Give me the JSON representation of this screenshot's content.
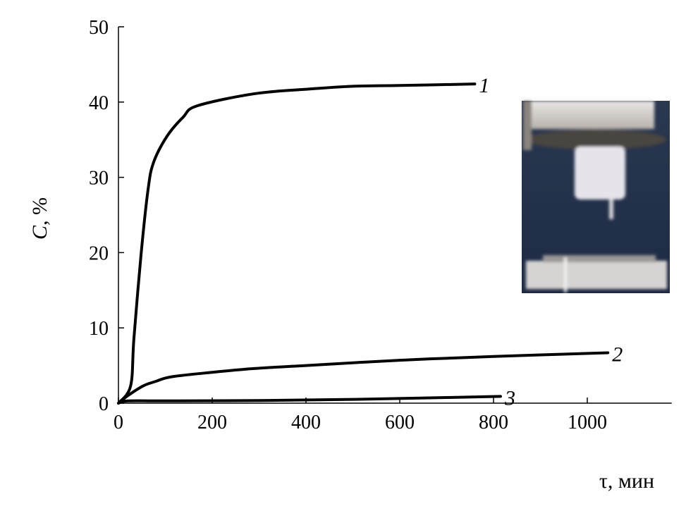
{
  "chart_data": {
    "type": "line",
    "xlabel": "τ, мин",
    "ylabel_var": "C",
    "ylabel_unit": ", %",
    "xlim": [
      0,
      1180
    ],
    "ylim": [
      0,
      50
    ],
    "xticks": [
      0,
      200,
      400,
      600,
      800,
      1000
    ],
    "yticks": [
      0,
      10,
      20,
      30,
      40,
      50
    ],
    "grid": false,
    "series": [
      {
        "name": "1",
        "x": [
          0,
          26,
          33,
          48,
          63,
          75,
          104,
          138,
          168,
          289,
          400,
          500,
          600,
          760
        ],
        "y": [
          0,
          2.3,
          8.6,
          19.6,
          28.3,
          32,
          35.5,
          38,
          39.5,
          41.1,
          41.7,
          42.1,
          42.2,
          42.4
        ]
      },
      {
        "name": "2",
        "x": [
          0,
          20,
          53,
          80,
          113,
          200,
          289,
          400,
          600,
          800,
          1044
        ],
        "y": [
          0,
          1.0,
          2.3,
          2.9,
          3.5,
          4.1,
          4.6,
          5.0,
          5.7,
          6.2,
          6.7
        ]
      },
      {
        "name": "3",
        "x": [
          0,
          20,
          100,
          300,
          500,
          700,
          815
        ],
        "y": [
          0,
          0.3,
          0.3,
          0.35,
          0.5,
          0.75,
          0.9
        ]
      }
    ],
    "inset": "photo"
  }
}
